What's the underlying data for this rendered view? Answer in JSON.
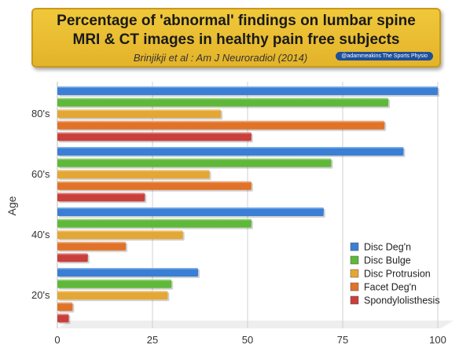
{
  "header": {
    "title_line1": "Percentage of 'abnormal' findings on lumbar spine",
    "title_line2": "MRI & CT images in healthy pain free subjects",
    "subtitle": "Brinjikji et al : Am J Neuroradiol (2014)",
    "credit": "@adammeakins   The Sports Physio"
  },
  "chart_data": {
    "type": "bar",
    "orientation": "horizontal",
    "ylabel": "Age",
    "xlim": [
      0,
      100
    ],
    "xticks": [
      0,
      25,
      50,
      75,
      100
    ],
    "categories": [
      "80's",
      "60's",
      "40's",
      "20's"
    ],
    "legend_position": "bottom-right",
    "grid": true,
    "series": [
      {
        "name": "Disc Deg'n",
        "color": "#3a7fd5",
        "values": [
          100,
          91,
          70,
          37
        ]
      },
      {
        "name": "Disc Bulge",
        "color": "#5fb83a",
        "values": [
          87,
          72,
          51,
          30
        ]
      },
      {
        "name": "Disc Protrusion",
        "color": "#e3a735",
        "values": [
          43,
          40,
          33,
          29
        ]
      },
      {
        "name": "Facet Deg'n",
        "color": "#e07328",
        "values": [
          86,
          51,
          18,
          4
        ]
      },
      {
        "name": "Spondylolisthesis",
        "color": "#c93f3b",
        "values": [
          51,
          23,
          8,
          3
        ]
      }
    ]
  }
}
